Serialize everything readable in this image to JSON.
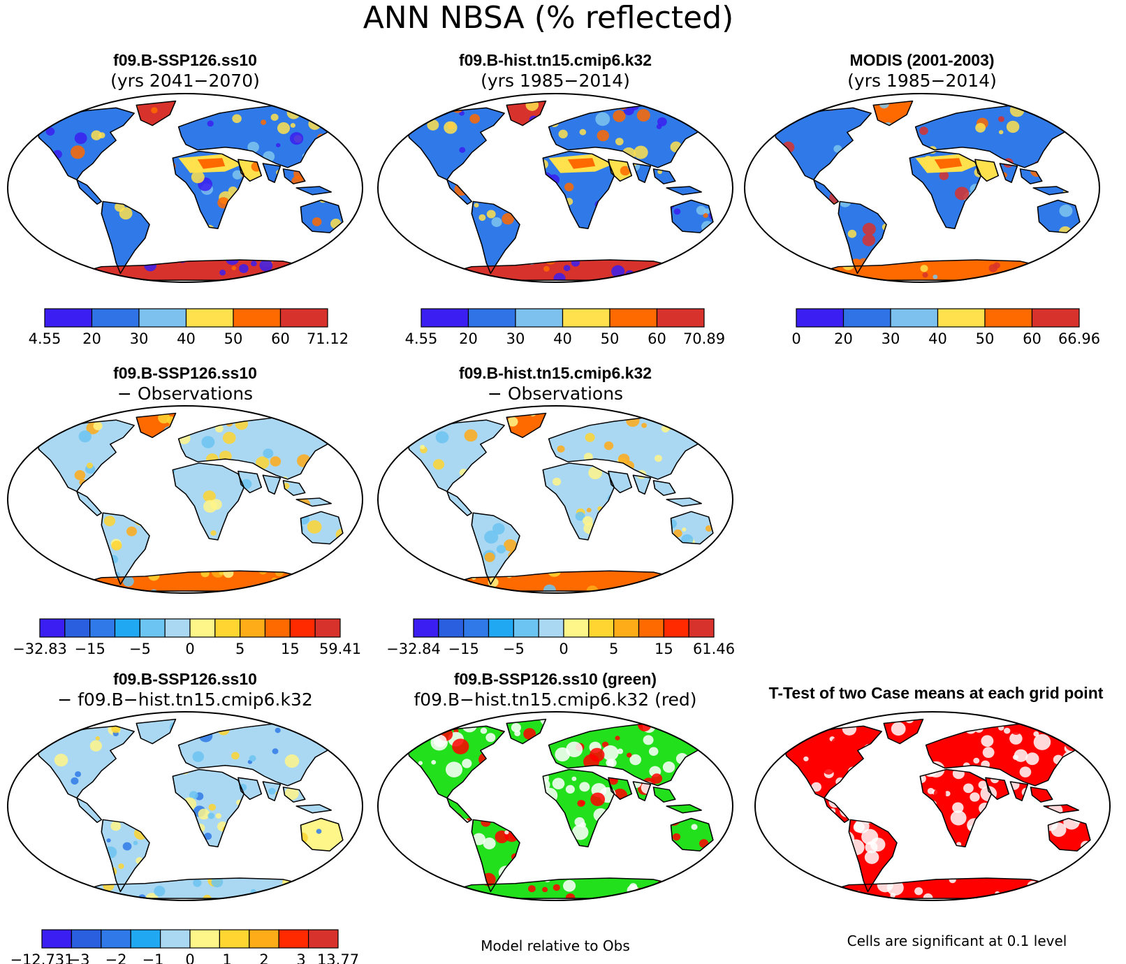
{
  "figure_title": "ANN NBSA (% reflected)",
  "colors": {
    "cool_deep": "#3a1ff0",
    "cool_mid": "#2f7ae8",
    "cool_light": "#7ec4ef",
    "warm_yellow": "#ffe14d",
    "warm_orange": "#ff6a00",
    "warm_red": "#d8322c",
    "ttest_red": "#ff0000",
    "green": "#22e01c"
  },
  "panels": [
    {
      "id": "case1-climo",
      "title": "f09.B-SSP126.ss10",
      "subtitle": "(yrs 2041−2070)",
      "scheme": "abs",
      "colorbar": {
        "colors": [
          "#3b1ff2",
          "#2f73e6",
          "#7dc2ee",
          "#ffe14d",
          "#ff6a00",
          "#d8322c"
        ],
        "ticks": [
          "4.55",
          "20",
          "30",
          "40",
          "50",
          "60",
          "71.12"
        ]
      }
    },
    {
      "id": "case2-climo",
      "title": "f09.B-hist.tn15.cmip6.k32",
      "subtitle": "(yrs 1985−2014)",
      "scheme": "abs",
      "colorbar": {
        "colors": [
          "#3b1ff2",
          "#2f73e6",
          "#7dc2ee",
          "#ffe14d",
          "#ff6a00",
          "#d8322c"
        ],
        "ticks": [
          "4.55",
          "20",
          "30",
          "40",
          "50",
          "60",
          "70.89"
        ]
      }
    },
    {
      "id": "obs-climo",
      "title": "MODIS (2001-2003)",
      "subtitle": "(yrs 1985−2014)",
      "scheme": "obs",
      "colorbar": {
        "colors": [
          "#3b1ff2",
          "#2f73e6",
          "#7dc2ee",
          "#ffe14d",
          "#ff6a00",
          "#d8322c"
        ],
        "ticks": [
          "0",
          "20",
          "30",
          "40",
          "50",
          "60",
          "66.96"
        ]
      }
    },
    {
      "id": "case1-minus-obs",
      "title": "f09.B-SSP126.ss10",
      "subtitle": "− Observations",
      "scheme": "diff",
      "colorbar": {
        "colors": [
          "#3b1ff2",
          "#2a5fe0",
          "#2f7ae8",
          "#20a8f2",
          "#6cc4f2",
          "#aad8f2",
          "#fff68a",
          "#ffd531",
          "#ffac19",
          "#ff6a00",
          "#ff2a00",
          "#d8322c"
        ],
        "ticks": [
          "−32.83",
          "−15",
          "−5",
          "0",
          "5",
          "15",
          "59.41"
        ]
      }
    },
    {
      "id": "case2-minus-obs",
      "title": "f09.B-hist.tn15.cmip6.k32",
      "subtitle": "− Observations",
      "scheme": "diff",
      "colorbar": {
        "colors": [
          "#3b1ff2",
          "#2a5fe0",
          "#2f7ae8",
          "#20a8f2",
          "#6cc4f2",
          "#aad8f2",
          "#fff68a",
          "#ffd531",
          "#ffac19",
          "#ff6a00",
          "#ff2a00",
          "#d8322c"
        ],
        "ticks": [
          "−32.84",
          "−15",
          "−5",
          "0",
          "5",
          "15",
          "61.46"
        ]
      }
    },
    {
      "id": "case1-minus-case2",
      "title": "f09.B-SSP126.ss10",
      "subtitle": "− f09.B−hist.tn15.cmip6.k32",
      "scheme": "diff2",
      "colorbar": {
        "colors": [
          "#3b1ff2",
          "#2a5fe0",
          "#2f7ae8",
          "#20a8f2",
          "#aad8f2",
          "#fff68a",
          "#ffd531",
          "#ffac19",
          "#ff2a00",
          "#d8322c"
        ],
        "ticks": [
          "−12.731",
          "−3",
          "−2",
          "−1",
          "0",
          "1",
          "2",
          "3",
          "13.77"
        ]
      }
    },
    {
      "id": "model-relative-to-obs",
      "title": "f09.B-SSP126.ss10 (green)",
      "subtitle": "f09.B−hist.tn15.cmip6.k32 (red)",
      "scheme": "rg",
      "note": "Model relative to Obs"
    },
    {
      "id": "ttest",
      "title": "T-Test of two Case means at each grid point",
      "subtitle": "",
      "scheme": "ttest",
      "note": "Cells are significant at 0.1 level"
    }
  ]
}
